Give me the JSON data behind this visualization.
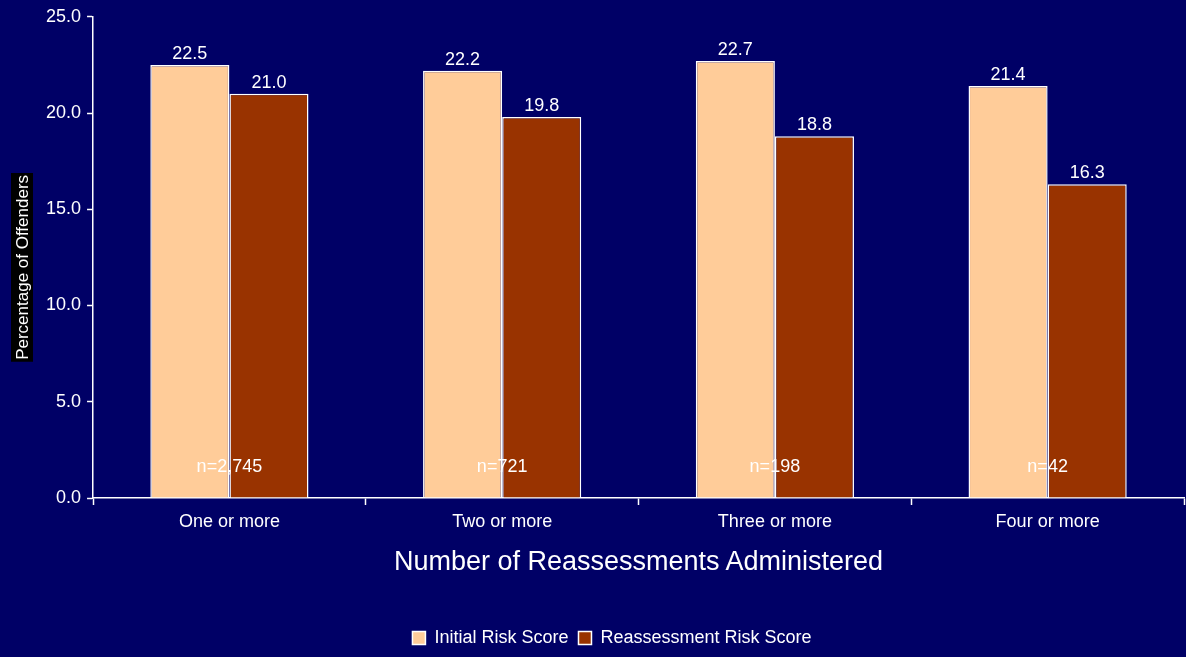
{
  "chart_data": {
    "type": "bar",
    "xlabel": "Number of Reassessments Administered",
    "ylabel": "Percentage of Offenders",
    "categories": [
      "One or more",
      "Two or more",
      "Three or more",
      "Four or more"
    ],
    "series": [
      {
        "name": "Initial Risk Score",
        "color": "#ffcc99",
        "values": [
          22.5,
          22.2,
          22.7,
          21.4
        ],
        "value_labels": [
          "22.5",
          "22.2",
          "22.7",
          "21.4"
        ]
      },
      {
        "name": "Reassessment Risk Score",
        "color": "#993300",
        "values": [
          21.0,
          19.8,
          18.8,
          16.3
        ],
        "value_labels": [
          "21.0",
          "19.8",
          "18.8",
          "16.3"
        ]
      }
    ],
    "ylim": [
      0,
      25
    ],
    "yticks": [
      {
        "value": 0,
        "label": "0.0"
      },
      {
        "value": 5,
        "label": "5.0"
      },
      {
        "value": 10,
        "label": "10.0"
      },
      {
        "value": 15,
        "label": "15.0"
      },
      {
        "value": 20,
        "label": "20.0"
      },
      {
        "value": 25,
        "label": "25.0"
      }
    ],
    "grid": false,
    "legend": "bottom",
    "annotations": [
      "n=2,745",
      "n=721",
      "n=198",
      "n=42"
    ]
  }
}
